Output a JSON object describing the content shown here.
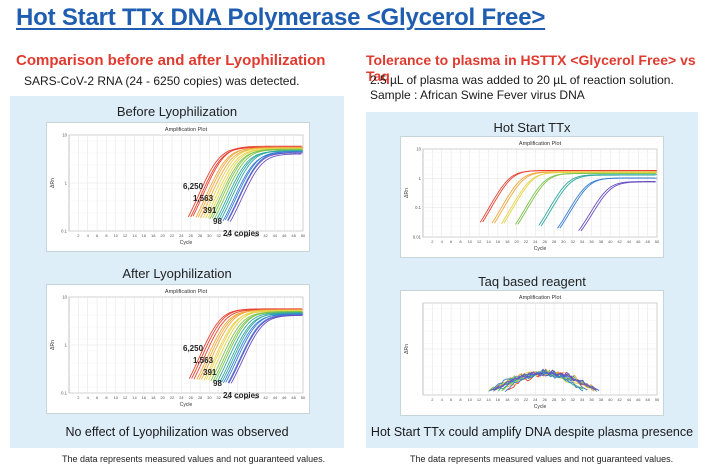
{
  "page": {
    "title": "Hot Start TTx DNA Polymerase <Glycerol Free>",
    "left": {
      "heading": "Comparison before and after Lyophilization",
      "sub": "SARS-CoV-2 RNA (24 - 6250 copies) was detected.",
      "conclusion": "No effect of Lyophilization was observed",
      "note": "The data represents measured values and not guaranteed values."
    },
    "right": {
      "heading": "Tolerance to plasma in HSTTX <Glycerol Free> vs Taq",
      "sub1": "2.5 µL of plasma was added to 20 µL of reaction solution.",
      "sub2": "Sample : African Swine Fever virus DNA",
      "conclusion": "Hot Start TTx could amplify DNA despite plasma presence",
      "note": "The data represents measured values and not guaranteed values."
    }
  },
  "chart_data": [
    {
      "id": "before",
      "type": "line",
      "title": "Before Lyophilization",
      "plot_title": "Amplification Plot",
      "xlabel": "Cycle",
      "ylabel": "ΔRn",
      "xlim": [
        0,
        50
      ],
      "yscale": "log",
      "ylim": [
        0.1,
        10
      ],
      "yticks": [
        "10",
        "1",
        "0.1"
      ],
      "xticks": [
        2,
        4,
        6,
        8,
        10,
        12,
        14,
        16,
        18,
        20,
        22,
        24,
        26,
        28,
        30,
        32,
        34,
        36,
        38,
        40,
        42,
        44,
        46,
        48,
        50
      ],
      "annotations": [
        "6,250",
        "1,563",
        "391",
        "98",
        "24 copies"
      ],
      "series": [
        {
          "color": "#e8412f",
          "mid": 32.0,
          "count": 3
        },
        {
          "color": "#f2a83a",
          "mid": 33.6,
          "count": 3
        },
        {
          "color": "#e6d44a",
          "mid": 35.2,
          "count": 3
        },
        {
          "color": "#7cc44e",
          "mid": 36.6,
          "count": 3
        },
        {
          "color": "#2fa9a0",
          "mid": 38.0,
          "count": 3
        },
        {
          "color": "#3a7fd6",
          "mid": 39.4,
          "count": 3
        },
        {
          "color": "#6a4fc2",
          "mid": 40.2,
          "count": 2
        }
      ]
    },
    {
      "id": "after",
      "type": "line",
      "title": "After Lyophilization",
      "plot_title": "Amplification Plot",
      "xlabel": "Cycle",
      "ylabel": "ΔRn",
      "xlim": [
        0,
        50
      ],
      "yscale": "log",
      "ylim": [
        0.1,
        10
      ],
      "yticks": [
        "10",
        "1",
        "0.1"
      ],
      "xticks": [
        2,
        4,
        6,
        8,
        10,
        12,
        14,
        16,
        18,
        20,
        22,
        24,
        26,
        28,
        30,
        32,
        34,
        36,
        38,
        40,
        42,
        44,
        46,
        48,
        50
      ],
      "annotations": [
        "6,250",
        "1,563",
        "391",
        "98",
        "24 copies"
      ],
      "series": [
        {
          "color": "#e8412f",
          "mid": 32.2,
          "count": 3
        },
        {
          "color": "#f2a83a",
          "mid": 33.8,
          "count": 3
        },
        {
          "color": "#e6d44a",
          "mid": 35.3,
          "count": 3
        },
        {
          "color": "#7cc44e",
          "mid": 36.8,
          "count": 3
        },
        {
          "color": "#2fa9a0",
          "mid": 38.2,
          "count": 3
        },
        {
          "color": "#3a7fd6",
          "mid": 39.5,
          "count": 3
        },
        {
          "color": "#6a4fc2",
          "mid": 40.4,
          "count": 2
        }
      ]
    },
    {
      "id": "hsttx",
      "type": "line",
      "title": "Hot Start TTx",
      "plot_title": "Amplification Plot",
      "xlabel": "Cycle",
      "ylabel": "ΔRn",
      "xlim": [
        0,
        50
      ],
      "yscale": "log",
      "ylim": [
        0.01,
        10
      ],
      "yticks": [
        "10",
        "1",
        "0.1",
        "0.01"
      ],
      "xticks": [
        2,
        4,
        6,
        8,
        10,
        12,
        14,
        16,
        18,
        20,
        22,
        24,
        26,
        28,
        30,
        32,
        34,
        36,
        38,
        40,
        42,
        44,
        46,
        48,
        50
      ],
      "series": [
        {
          "color": "#e8412f",
          "mid": 18.5,
          "count": 2,
          "plateau": 1.8
        },
        {
          "color": "#f2a83a",
          "mid": 21.0,
          "count": 2,
          "plateau": 1.7
        },
        {
          "color": "#e6d44a",
          "mid": 23.0,
          "count": 2,
          "plateau": 1.6
        },
        {
          "color": "#7cc44e",
          "mid": 26.0,
          "count": 2,
          "plateau": 1.5
        },
        {
          "color": "#2fa9a0",
          "mid": 31.0,
          "count": 2,
          "plateau": 1.3
        },
        {
          "color": "#3a7fd6",
          "mid": 35.0,
          "count": 2,
          "plateau": 1.0
        },
        {
          "color": "#6a4fc2",
          "mid": 39.5,
          "count": 2,
          "plateau": 0.75
        }
      ]
    },
    {
      "id": "taq",
      "type": "line",
      "title": "Taq based reagent",
      "plot_title": "Amplification Plot",
      "xlabel": "Cycle",
      "ylabel": "ΔRn",
      "xlim": [
        0,
        50
      ],
      "ylim": [
        0,
        1
      ],
      "yticks": [
        "",
        "",
        ""
      ],
      "xticks": [
        2,
        4,
        6,
        8,
        10,
        12,
        14,
        16,
        18,
        20,
        22,
        24,
        26,
        28,
        30,
        32,
        34,
        36,
        38,
        40,
        42,
        44,
        46,
        48,
        50
      ],
      "series": [
        {
          "color": "#e8412f",
          "noise": true,
          "count": 2
        },
        {
          "color": "#f2a83a",
          "noise": true,
          "count": 2
        },
        {
          "color": "#e6d44a",
          "noise": true,
          "count": 2
        },
        {
          "color": "#7cc44e",
          "noise": true,
          "count": 2
        },
        {
          "color": "#2fa9a0",
          "noise": true,
          "count": 2
        },
        {
          "color": "#3a7fd6",
          "noise": true,
          "count": 2
        },
        {
          "color": "#6a4fc2",
          "noise": true,
          "count": 2
        }
      ]
    }
  ]
}
